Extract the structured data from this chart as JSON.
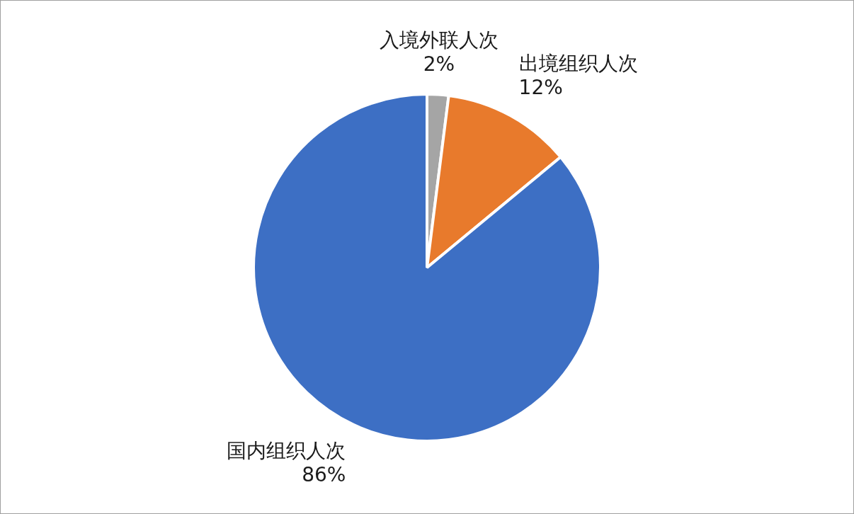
{
  "chart_data": {
    "type": "pie",
    "categories": [
      "入境外联人次",
      "出境组织人次",
      "国内组织人次"
    ],
    "values": [
      2,
      12,
      86
    ],
    "colors": [
      "#a5a5a5",
      "#e87a2c",
      "#3d6fc4"
    ],
    "value_labels": [
      "2%",
      "12%",
      "86%"
    ]
  }
}
